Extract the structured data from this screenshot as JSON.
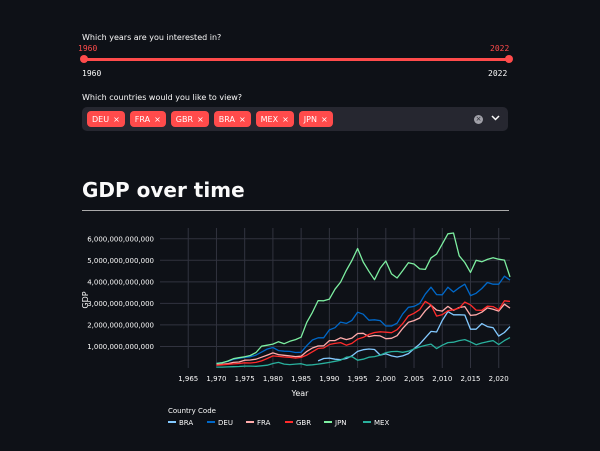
{
  "years_slider": {
    "label": "Which years are you interested in?",
    "min_value": "1960",
    "max_value": "2022",
    "range_min": "1960",
    "range_max": "2022",
    "accent": "#ff4b4b"
  },
  "countries_select": {
    "label": "Which countries would you like to view?",
    "tags": [
      "DEU",
      "FRA",
      "GBR",
      "BRA",
      "MEX",
      "JPN"
    ],
    "remove_glyph": "×",
    "clear_glyph": "×",
    "chevron_icon": "chevron-down-icon"
  },
  "header": {
    "title": "GDP over time"
  },
  "chart_data": {
    "type": "line",
    "xlabel": "Year",
    "ylabel": "GDP",
    "xlim": [
      1960,
      2022
    ],
    "ylim": [
      0,
      6500000000000
    ],
    "x_ticks": [
      "1,965",
      "1,970",
      "1,975",
      "1,980",
      "1,985",
      "1,990",
      "1,995",
      "2,000",
      "2,005",
      "2,010",
      "2,015",
      "2,020"
    ],
    "y_ticks": [
      "1,000,000,000,000",
      "2,000,000,000,000",
      "3,000,000,000,000",
      "4,000,000,000,000",
      "5,000,000,000,000",
      "6,000,000,000,000"
    ],
    "legend_title": "Country Code",
    "legend_position": "bottom-left",
    "grid": true,
    "series": [
      {
        "name": "BRA",
        "color": "#83c9ff",
        "x": [
          1988,
          1989,
          1990,
          1991,
          1992,
          1993,
          1994,
          1995,
          1996,
          1997,
          1998,
          1999,
          2000,
          2001,
          2002,
          2003,
          2004,
          2005,
          2006,
          2007,
          2008,
          2009,
          2010,
          2011,
          2012,
          2013,
          2014,
          2015,
          2016,
          2017,
          2018,
          2019,
          2020,
          2021,
          2022
        ],
        "y": [
          330000000000.0,
          440000000000.0,
          460000000000.0,
          410000000000.0,
          390000000000.0,
          440000000000.0,
          560000000000.0,
          770000000000.0,
          850000000000.0,
          880000000000.0,
          860000000000.0,
          600000000000.0,
          660000000000.0,
          560000000000.0,
          510000000000.0,
          560000000000.0,
          670000000000.0,
          890000000000.0,
          1110000000000.0,
          1400000000000.0,
          1700000000000.0,
          1670000000000.0,
          2210000000000.0,
          2620000000000.0,
          2470000000000.0,
          2470000000000.0,
          2460000000000.0,
          1800000000000.0,
          1800000000000.0,
          2060000000000.0,
          1920000000000.0,
          1870000000000.0,
          1480000000000.0,
          1650000000000.0,
          1920000000000.0
        ]
      },
      {
        "name": "DEU",
        "color": "#0068c9",
        "x": [
          1970,
          1971,
          1972,
          1973,
          1974,
          1975,
          1976,
          1977,
          1978,
          1979,
          1980,
          1981,
          1982,
          1983,
          1984,
          1985,
          1986,
          1987,
          1988,
          1989,
          1990,
          1991,
          1992,
          1993,
          1994,
          1995,
          1996,
          1997,
          1998,
          1999,
          2000,
          2001,
          2002,
          2003,
          2004,
          2005,
          2006,
          2007,
          2008,
          2009,
          2010,
          2011,
          2012,
          2013,
          2014,
          2015,
          2016,
          2017,
          2018,
          2019,
          2020,
          2021,
          2022
        ],
        "y": [
          220000000000.0,
          250000000000.0,
          300000000000.0,
          400000000000.0,
          450000000000.0,
          490000000000.0,
          520000000000.0,
          600000000000.0,
          740000000000.0,
          880000000000.0,
          950000000000.0,
          810000000000.0,
          780000000000.0,
          770000000000.0,
          720000000000.0,
          730000000000.0,
          1040000000000.0,
          1300000000000.0,
          1400000000000.0,
          1400000000000.0,
          1770000000000.0,
          1870000000000.0,
          2130000000000.0,
          2070000000000.0,
          2210000000000.0,
          2590000000000.0,
          2500000000000.0,
          2220000000000.0,
          2240000000000.0,
          2200000000000.0,
          1950000000000.0,
          1950000000000.0,
          2080000000000.0,
          2510000000000.0,
          2820000000000.0,
          2860000000000.0,
          3000000000000.0,
          3430000000000.0,
          3750000000000.0,
          3410000000000.0,
          3400000000000.0,
          3750000000000.0,
          3530000000000.0,
          3730000000000.0,
          3890000000000.0,
          3360000000000.0,
          3470000000000.0,
          3690000000000.0,
          3970000000000.0,
          3890000000000.0,
          3890000000000.0,
          4260000000000.0,
          4080000000000.0
        ]
      },
      {
        "name": "FRA",
        "color": "#ffabab",
        "x": [
          1970,
          1971,
          1972,
          1973,
          1974,
          1975,
          1976,
          1977,
          1978,
          1979,
          1980,
          1981,
          1982,
          1983,
          1984,
          1985,
          1986,
          1987,
          1988,
          1989,
          1990,
          1991,
          1992,
          1993,
          1994,
          1995,
          1996,
          1997,
          1998,
          1999,
          2000,
          2001,
          2002,
          2003,
          2004,
          2005,
          2006,
          2007,
          2008,
          2009,
          2010,
          2011,
          2012,
          2013,
          2014,
          2015,
          2016,
          2017,
          2018,
          2019,
          2020,
          2021,
          2022
        ],
        "y": [
          150000000000.0,
          170000000000.0,
          200000000000.0,
          260000000000.0,
          280000000000.0,
          360000000000.0,
          370000000000.0,
          410000000000.0,
          500000000000.0,
          600000000000.0,
          700000000000.0,
          620000000000.0,
          590000000000.0,
          560000000000.0,
          530000000000.0,
          550000000000.0,
          770000000000.0,
          930000000000.0,
          1020000000000.0,
          1030000000000.0,
          1270000000000.0,
          1270000000000.0,
          1400000000000.0,
          1320000000000.0,
          1390000000000.0,
          1600000000000.0,
          1610000000000.0,
          1460000000000.0,
          1510000000000.0,
          1490000000000.0,
          1360000000000.0,
          1380000000000.0,
          1500000000000.0,
          1840000000000.0,
          2120000000000.0,
          2200000000000.0,
          2320000000000.0,
          2660000000000.0,
          2920000000000.0,
          2690000000000.0,
          2640000000000.0,
          2860000000000.0,
          2680000000000.0,
          2810000000000.0,
          2850000000000.0,
          2440000000000.0,
          2470000000000.0,
          2590000000000.0,
          2790000000000.0,
          2730000000000.0,
          2640000000000.0,
          2960000000000.0,
          2780000000000.0
        ]
      },
      {
        "name": "GBR",
        "color": "#ff2b2b",
        "x": [
          1970,
          1971,
          1972,
          1973,
          1974,
          1975,
          1976,
          1977,
          1978,
          1979,
          1980,
          1981,
          1982,
          1983,
          1984,
          1985,
          1986,
          1987,
          1988,
          1989,
          1990,
          1991,
          1992,
          1993,
          1994,
          1995,
          1996,
          1997,
          1998,
          1999,
          2000,
          2001,
          2002,
          2003,
          2004,
          2005,
          2006,
          2007,
          2008,
          2009,
          2010,
          2011,
          2012,
          2013,
          2014,
          2015,
          2016,
          2017,
          2018,
          2019,
          2020,
          2021,
          2022
        ],
        "y": [
          130000000000.0,
          150000000000.0,
          170000000000.0,
          190000000000.0,
          210000000000.0,
          240000000000.0,
          230000000000.0,
          260000000000.0,
          330000000000.0,
          440000000000.0,
          560000000000.0,
          540000000000.0,
          510000000000.0,
          490000000000.0,
          460000000000.0,
          490000000000.0,
          600000000000.0,
          750000000000.0,
          910000000000.0,
          930000000000.0,
          1090000000000.0,
          1140000000000.0,
          1180000000000.0,
          1060000000000.0,
          1140000000000.0,
          1340000000000.0,
          1420000000000.0,
          1560000000000.0,
          1650000000000.0,
          1680000000000.0,
          1660000000000.0,
          1640000000000.0,
          1780000000000.0,
          2060000000000.0,
          2420000000000.0,
          2540000000000.0,
          2710000000000.0,
          3090000000000.0,
          2930000000000.0,
          2410000000000.0,
          2480000000000.0,
          2660000000000.0,
          2700000000000.0,
          2780000000000.0,
          3060000000000.0,
          2930000000000.0,
          2690000000000.0,
          2680000000000.0,
          2870000000000.0,
          2850000000000.0,
          2700000000000.0,
          3120000000000.0,
          3090000000000.0
        ]
      },
      {
        "name": "JPN",
        "color": "#7defa1",
        "x": [
          1970,
          1971,
          1972,
          1973,
          1974,
          1975,
          1976,
          1977,
          1978,
          1979,
          1980,
          1981,
          1982,
          1983,
          1984,
          1985,
          1986,
          1987,
          1988,
          1989,
          1990,
          1991,
          1992,
          1993,
          1994,
          1995,
          1996,
          1997,
          1998,
          1999,
          2000,
          2001,
          2002,
          2003,
          2004,
          2005,
          2006,
          2007,
          2008,
          2009,
          2010,
          2011,
          2012,
          2013,
          2014,
          2015,
          2016,
          2017,
          2018,
          2019,
          2020,
          2021,
          2022
        ],
        "y": [
          210000000000.0,
          240000000000.0,
          320000000000.0,
          430000000000.0,
          480000000000.0,
          520000000000.0,
          580000000000.0,
          720000000000.0,
          1010000000000.0,
          1060000000000.0,
          1110000000000.0,
          1220000000000.0,
          1130000000000.0,
          1240000000000.0,
          1320000000000.0,
          1430000000000.0,
          2120000000000.0,
          2580000000000.0,
          3130000000000.0,
          3120000000000.0,
          3200000000000.0,
          3660000000000.0,
          3990000000000.0,
          4530000000000.0,
          4990000000000.0,
          5550000000000.0,
          4920000000000.0,
          4490000000000.0,
          4100000000000.0,
          4640000000000.0,
          4970000000000.0,
          4370000000000.0,
          4180000000000.0,
          4520000000000.0,
          4890000000000.0,
          4830000000000.0,
          4600000000000.0,
          4580000000000.0,
          5110000000000.0,
          5290000000000.0,
          5760000000000.0,
          6230000000000.0,
          6270000000000.0,
          5210000000000.0,
          4900000000000.0,
          4440000000000.0,
          5000000000000.0,
          4930000000000.0,
          5040000000000.0,
          5120000000000.0,
          5050000000000.0,
          5010000000000.0,
          4230000000000.0
        ]
      },
      {
        "name": "MEX",
        "color": "#29b09d",
        "x": [
          1970,
          1971,
          1972,
          1973,
          1974,
          1975,
          1976,
          1977,
          1978,
          1979,
          1980,
          1981,
          1982,
          1983,
          1984,
          1985,
          1986,
          1987,
          1988,
          1989,
          1990,
          1991,
          1992,
          1993,
          1994,
          1995,
          1996,
          1997,
          1998,
          1999,
          2000,
          2001,
          2002,
          2003,
          2004,
          2005,
          2006,
          2007,
          2008,
          2009,
          2010,
          2011,
          2012,
          2013,
          2014,
          2015,
          2016,
          2017,
          2018,
          2019,
          2020,
          2021,
          2022
        ],
        "y": [
          40000000000.0,
          40000000000.0,
          50000000000.0,
          60000000000.0,
          70000000000.0,
          90000000000.0,
          90000000000.0,
          80000000000.0,
          100000000000.0,
          130000000000.0,
          210000000000.0,
          260000000000.0,
          180000000000.0,
          160000000000.0,
          180000000000.0,
          200000000000.0,
          130000000000.0,
          150000000000.0,
          180000000000.0,
          220000000000.0,
          260000000000.0,
          310000000000.0,
          360000000000.0,
          500000000000.0,
          530000000000.0,
          360000000000.0,
          410000000000.0,
          500000000000.0,
          530000000000.0,
          600000000000.0,
          710000000000.0,
          760000000000.0,
          770000000000.0,
          730000000000.0,
          780000000000.0,
          880000000000.0,
          980000000000.0,
          1050000000000.0,
          1110000000000.0,
          900000000000.0,
          1060000000000.0,
          1180000000000.0,
          1200000000000.0,
          1270000000000.0,
          1320000000000.0,
          1210000000000.0,
          1080000000000.0,
          1160000000000.0,
          1220000000000.0,
          1270000000000.0,
          1090000000000.0,
          1270000000000.0,
          1410000000000.0
        ]
      }
    ]
  }
}
